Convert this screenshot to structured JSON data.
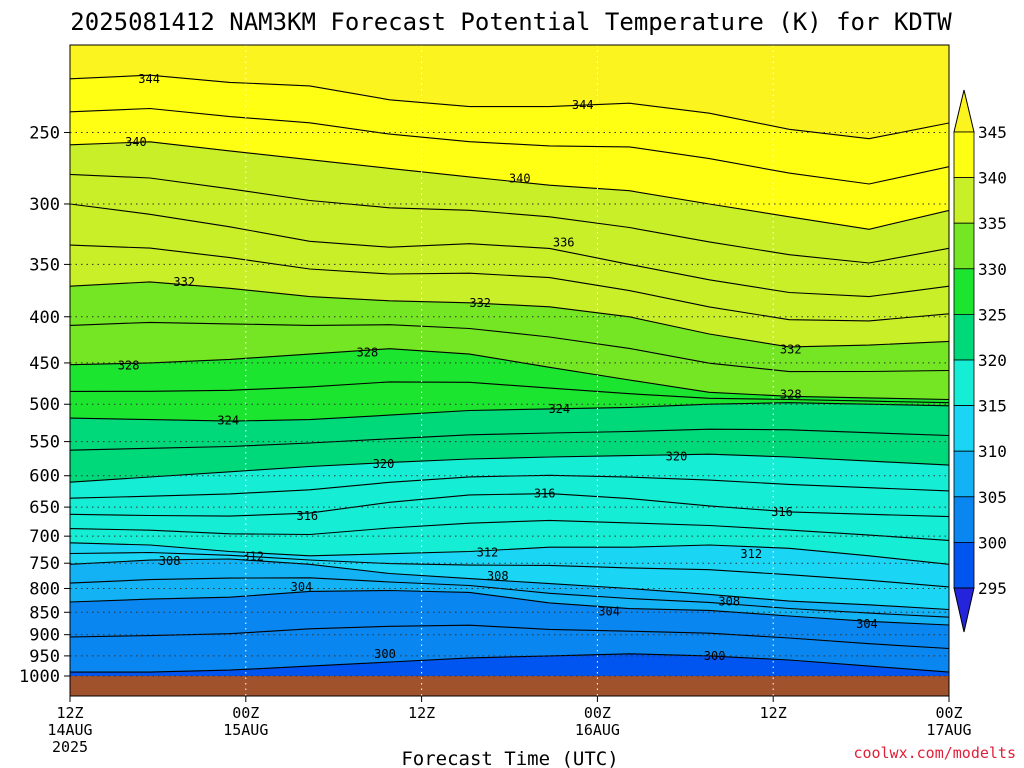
{
  "chart_data": {
    "type": "heatmap",
    "title": "2025081412 NAM3KM Forecast Potential Temperature (K) for KDTW",
    "xlabel": "Forecast Time (UTC)",
    "ylabel": "",
    "credit": "coolwx.com/modelts",
    "y_axis": {
      "scale": "log-pressure",
      "ylim_hpa": [
        1000,
        200
      ],
      "ticks": [
        250,
        300,
        350,
        400,
        450,
        500,
        550,
        600,
        650,
        700,
        750,
        800,
        850,
        900,
        950,
        1000
      ],
      "tick_labels": [
        "250",
        "300",
        "350",
        "400",
        "450",
        "500",
        "550",
        "600",
        "650",
        "700",
        "750",
        "800",
        "850",
        "900",
        "950",
        "1000"
      ]
    },
    "x_axis": {
      "range_hours": [
        0,
        60
      ],
      "ticks": [
        {
          "hour": 0,
          "lines": [
            "12Z",
            "14AUG",
            "2025"
          ]
        },
        {
          "hour": 12,
          "lines": [
            "00Z",
            "15AUG"
          ]
        },
        {
          "hour": 24,
          "lines": [
            "12Z"
          ]
        },
        {
          "hour": 36,
          "lines": [
            "00Z",
            "16AUG"
          ]
        },
        {
          "hour": 48,
          "lines": [
            "12Z"
          ]
        },
        {
          "hour": 60,
          "lines": [
            "00Z",
            "17AUG"
          ]
        }
      ]
    },
    "grid": true,
    "colorbar": {
      "levels": [
        295,
        300,
        305,
        310,
        315,
        320,
        325,
        330,
        335,
        340,
        345
      ],
      "labels": [
        "345",
        "340",
        "335",
        "330",
        "325",
        "320",
        "315",
        "310",
        "305",
        "300",
        "295"
      ],
      "colors": [
        "#2424dc",
        "#0055f0",
        "#0a86f0",
        "#13b2f4",
        "#1ad6f4",
        "#15eed4",
        "#00d97a",
        "#1be52f",
        "#74e624",
        "#c8ef28",
        "#ffff14",
        "#fbf41e"
      ]
    },
    "ground_color": "#a0522d",
    "contour_interval_k": 2,
    "contour_labels": [
      {
        "value": 344,
        "hour": 5.4,
        "p": 218
      },
      {
        "value": 344,
        "hour": 35.0,
        "p": 233
      },
      {
        "value": 340,
        "hour": 4.5,
        "p": 256
      },
      {
        "value": 340,
        "hour": 30.7,
        "p": 281
      },
      {
        "value": 336,
        "hour": 33.7,
        "p": 331
      },
      {
        "value": 332,
        "hour": 7.8,
        "p": 366
      },
      {
        "value": 332,
        "hour": 28.0,
        "p": 386
      },
      {
        "value": 332,
        "hour": 49.2,
        "p": 435
      },
      {
        "value": 328,
        "hour": 4.0,
        "p": 453
      },
      {
        "value": 328,
        "hour": 20.3,
        "p": 438
      },
      {
        "value": 328,
        "hour": 49.2,
        "p": 488
      },
      {
        "value": 324,
        "hour": 10.8,
        "p": 521
      },
      {
        "value": 324,
        "hour": 33.4,
        "p": 506
      },
      {
        "value": 320,
        "hour": 21.4,
        "p": 582
      },
      {
        "value": 320,
        "hour": 41.4,
        "p": 571
      },
      {
        "value": 316,
        "hour": 16.2,
        "p": 665
      },
      {
        "value": 316,
        "hour": 32.4,
        "p": 628
      },
      {
        "value": 316,
        "hour": 48.6,
        "p": 658
      },
      {
        "value": 312,
        "hour": 12.5,
        "p": 737
      },
      {
        "value": 312,
        "hour": 28.5,
        "p": 730
      },
      {
        "value": 312,
        "hour": 46.5,
        "p": 733
      },
      {
        "value": 308,
        "hour": 6.8,
        "p": 746
      },
      {
        "value": 308,
        "hour": 29.2,
        "p": 775
      },
      {
        "value": 308,
        "hour": 45.0,
        "p": 827
      },
      {
        "value": 304,
        "hour": 15.8,
        "p": 797
      },
      {
        "value": 304,
        "hour": 36.8,
        "p": 848
      },
      {
        "value": 304,
        "hour": 54.4,
        "p": 876
      },
      {
        "value": 300,
        "hour": 21.5,
        "p": 945
      },
      {
        "value": 300,
        "hour": 44.0,
        "p": 950
      }
    ],
    "isentropes": [
      {
        "value": 300,
        "p": [
          990,
          990,
          985,
          975,
          965,
          955,
          950,
          945,
          950,
          960,
          975,
          990
        ]
      },
      {
        "value": 304,
        "p": [
          828,
          822,
          818,
          806,
          804,
          808,
          830,
          842,
          846,
          858,
          870,
          878
        ]
      },
      {
        "value": 308,
        "p": [
          752,
          744,
          742,
          752,
          770,
          780,
          790,
          800,
          812,
          826,
          834,
          844
        ]
      },
      {
        "value": 312,
        "p": [
          712,
          716,
          728,
          736,
          732,
          728,
          720,
          720,
          716,
          722,
          736,
          752
        ]
      },
      {
        "value": 316,
        "p": [
          662,
          664,
          665,
          660,
          642,
          630,
          628,
          636,
          648,
          658,
          662,
          666
        ]
      },
      {
        "value": 320,
        "p": [
          610,
          602,
          594,
          586,
          580,
          575,
          572,
          570,
          568,
          572,
          578,
          584
        ]
      },
      {
        "value": 324,
        "p": [
          518,
          520,
          522,
          520,
          514,
          508,
          506,
          504,
          500,
          498,
          500,
          502
        ]
      },
      {
        "value": 328,
        "p": [
          452,
          450,
          446,
          440,
          434,
          440,
          455,
          470,
          485,
          490,
          492,
          494
        ]
      },
      {
        "value": 332,
        "p": [
          370,
          366,
          372,
          380,
          384,
          386,
          390,
          400,
          418,
          432,
          430,
          426
        ]
      },
      {
        "value": 336,
        "p": [
          300,
          308,
          318,
          330,
          335,
          332,
          336,
          350,
          364,
          376,
          380,
          370
        ]
      },
      {
        "value": 340,
        "p": [
          258,
          256,
          262,
          268,
          274,
          280,
          286,
          290,
          300,
          310,
          320,
          305
        ]
      },
      {
        "value": 344,
        "p": [
          218,
          216,
          220,
          222,
          230,
          234,
          234,
          232,
          238,
          248,
          254,
          244
        ]
      }
    ]
  }
}
